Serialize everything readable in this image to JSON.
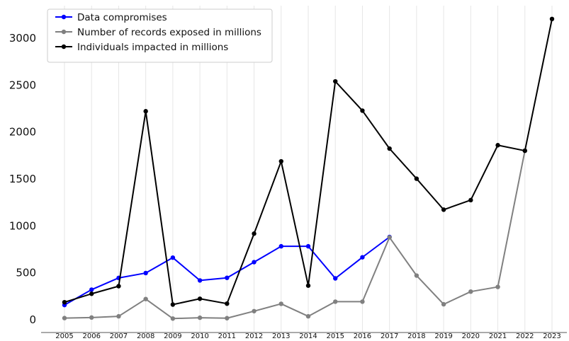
{
  "chart_data": {
    "type": "line",
    "title": "",
    "xlabel": "",
    "ylabel": "",
    "x": [
      2005,
      2006,
      2007,
      2008,
      2009,
      2010,
      2011,
      2012,
      2013,
      2014,
      2015,
      2016,
      2017,
      2018,
      2019,
      2020,
      2021,
      2022,
      2023
    ],
    "ylim": [
      -80,
      3250
    ],
    "yticks": [
      0,
      500,
      1000,
      1500,
      2000,
      2500,
      3000
    ],
    "grid": "vertical",
    "legend_position": "top-left",
    "series": [
      {
        "name": "Data compromises",
        "color": "#0000ff",
        "x": [
          2005,
          2006,
          2007,
          2008,
          2009,
          2010,
          2011,
          2012,
          2013,
          2014,
          2015,
          2016,
          2017
        ],
        "values": [
          157,
          321,
          446,
          498,
          662,
          419,
          447,
          614,
          783,
          783,
          441,
          666,
          882
        ]
      },
      {
        "name": "Number of records exposed in millions",
        "color": "#808080",
        "x": [
          2005,
          2006,
          2007,
          2008,
          2009,
          2010,
          2011,
          2012,
          2013,
          2014,
          2015,
          2016,
          2017,
          2018,
          2019,
          2020,
          2021,
          2022
        ],
        "values": [
          18,
          24,
          37,
          221,
          13,
          22,
          17,
          92,
          170,
          37,
          193,
          193,
          878,
          471,
          165,
          300,
          350,
          1802
        ]
      },
      {
        "name": "Individuals impacted in millions",
        "color": "#000000",
        "x": [
          2005,
          2006,
          2007,
          2008,
          2009,
          2010,
          2011,
          2012,
          2013,
          2014,
          2015,
          2016,
          2017,
          2018,
          2019,
          2020,
          2021,
          2022,
          2023
        ],
        "values": [
          187,
          277,
          358,
          2222,
          162,
          224,
          172,
          918,
          1688,
          364,
          2540,
          2228,
          1824,
          1503,
          1173,
          1275,
          1860,
          1801,
          3205
        ]
      }
    ]
  }
}
